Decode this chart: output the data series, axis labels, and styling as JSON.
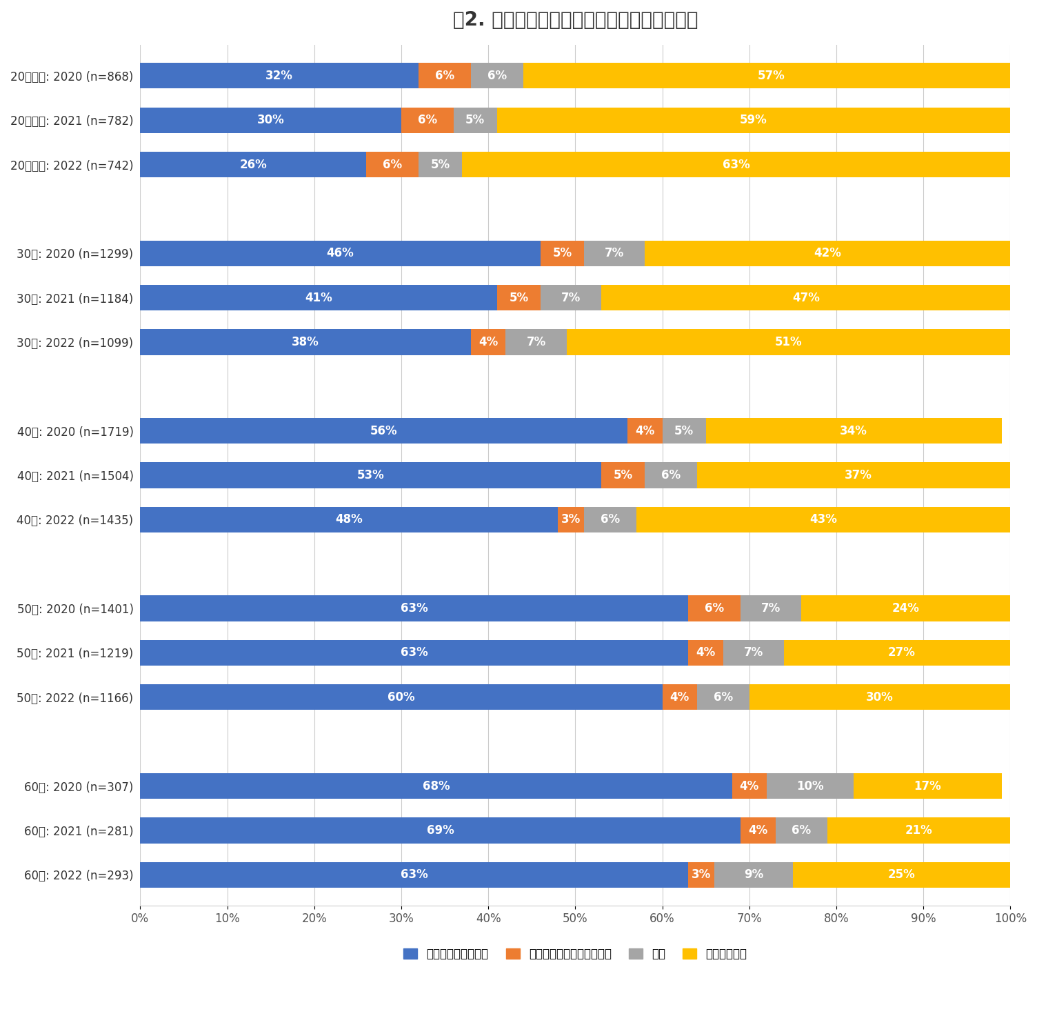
{
  "title": "図2. 年齢層別年賀状を出した人の割合の変化",
  "categories": [
    "20代以下: 2020 (n=868)",
    "20代以下: 2021 (n=782)",
    "20代以下: 2022 (n=742)",
    "",
    "30代: 2020 (n=1299)",
    "30代: 2021 (n=1184)",
    "30代: 2022 (n=1099)",
    "",
    "40代: 2020 (n=1719)",
    "40代: 2021 (n=1504)",
    "40代: 2022 (n=1435)",
    "",
    "50代: 2020 (n=1401)",
    "50代: 2021 (n=1219)",
    "50代: 2022 (n=1166)",
    "",
    "60代: 2020 (n=307)",
    "60代: 2021 (n=281)",
    "60代: 2022 (n=293)"
  ],
  "data": [
    [
      32,
      6,
      6,
      57
    ],
    [
      30,
      6,
      5,
      59
    ],
    [
      26,
      6,
      5,
      63
    ],
    [
      0,
      0,
      0,
      0
    ],
    [
      46,
      5,
      7,
      42
    ],
    [
      41,
      5,
      7,
      47
    ],
    [
      38,
      4,
      7,
      51
    ],
    [
      0,
      0,
      0,
      0
    ],
    [
      56,
      4,
      5,
      34
    ],
    [
      53,
      5,
      6,
      37
    ],
    [
      48,
      3,
      6,
      43
    ],
    [
      0,
      0,
      0,
      0
    ],
    [
      63,
      6,
      7,
      24
    ],
    [
      63,
      4,
      7,
      27
    ],
    [
      60,
      4,
      6,
      30
    ],
    [
      0,
      0,
      0,
      0
    ],
    [
      68,
      4,
      10,
      17
    ],
    [
      69,
      4,
      6,
      21
    ],
    [
      63,
      3,
      9,
      25
    ]
  ],
  "colors": [
    "#4472C4",
    "#ED7D31",
    "#A5A5A5",
    "#FFC000"
  ],
  "legend_labels": [
    "年賀ハガキを出した",
    "ハガキ以外の方法で出した",
    "喪中",
    "出していない"
  ],
  "background_color": "#FFFFFF",
  "title_fontsize": 20,
  "label_fontsize": 12,
  "tick_fontsize": 12,
  "legend_fontsize": 12
}
